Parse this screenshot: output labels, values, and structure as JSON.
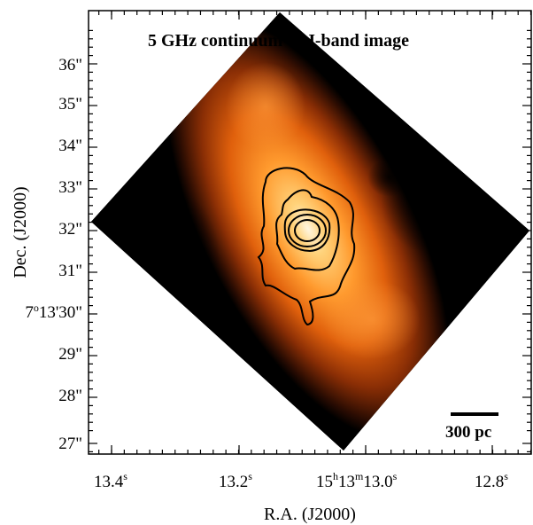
{
  "figure": {
    "title": "5 GHz continuum & J-band image",
    "xlabel": "R.A. (J2000)",
    "ylabel": "Dec. (J2000)",
    "scalebar_label": "300 pc",
    "colors": {
      "frame": "#000000",
      "contours": "#000000",
      "map_low": "#000000",
      "map_mid": "#e8620e",
      "map_high": "#fff4d8"
    }
  },
  "x_ticks": [
    {
      "id": "x1",
      "base": "13.4",
      "sup": "s"
    },
    {
      "id": "x2",
      "base": "13.2",
      "sup": "s"
    },
    {
      "id": "x3",
      "parts": [
        "15",
        "h",
        "13",
        "m",
        "13.0",
        "s"
      ]
    },
    {
      "id": "x4",
      "base": "12.8",
      "sup": "s"
    }
  ],
  "y_ticks": [
    {
      "id": "y36",
      "text": "36\""
    },
    {
      "id": "y35",
      "text": "35\""
    },
    {
      "id": "y34",
      "text": "34\""
    },
    {
      "id": "y33",
      "text": "33\""
    },
    {
      "id": "y32",
      "text": "32\""
    },
    {
      "id": "y31",
      "text": "31\""
    },
    {
      "id": "y30",
      "parts": [
        "7",
        "o",
        "13'30\""
      ]
    },
    {
      "id": "y29",
      "text": "29\""
    },
    {
      "id": "y28",
      "text": "28\""
    },
    {
      "id": "y27",
      "text": "27\""
    }
  ]
}
